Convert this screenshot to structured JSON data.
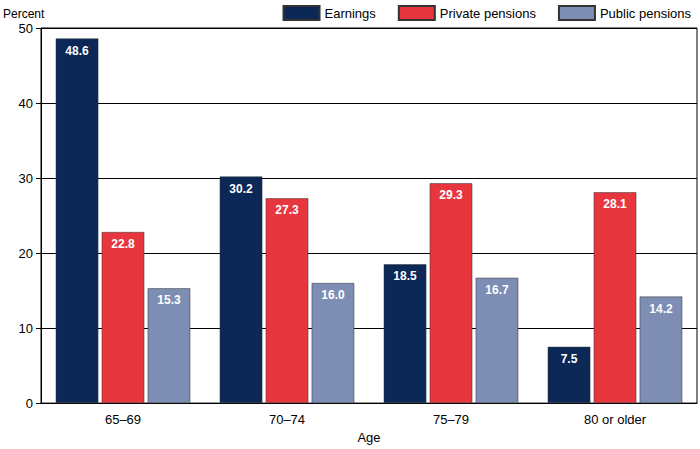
{
  "chart_data": {
    "type": "bar",
    "categories": [
      "65–69",
      "70–74",
      "75–79",
      "80 or older"
    ],
    "series": [
      {
        "name": "Earnings",
        "color": "#0b2857",
        "values": [
          48.6,
          30.2,
          18.5,
          7.5
        ]
      },
      {
        "name": "Private pensions",
        "color": "#e8363f",
        "values": [
          22.8,
          27.3,
          29.3,
          28.1
        ]
      },
      {
        "name": "Public pensions",
        "color": "#7d8db4",
        "values": [
          15.3,
          16.0,
          16.7,
          14.2
        ],
        "value_labels": [
          "15.3",
          "16.0",
          "16.7",
          "14.2"
        ]
      }
    ],
    "x_label": "Age",
    "y_label": "Percent",
    "ylim": [
      0,
      50
    ],
    "yticks": [
      0,
      10,
      20,
      30,
      40,
      50
    ],
    "grid": true,
    "legend": "top-right",
    "data_labels": true
  }
}
